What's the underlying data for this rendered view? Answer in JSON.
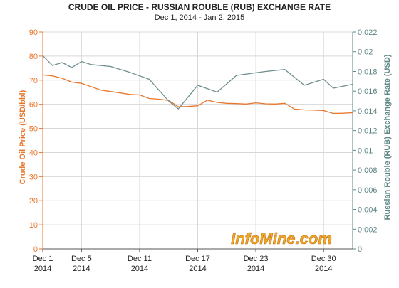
{
  "chart_data": {
    "type": "line",
    "title": "CRUDE OIL PRICE - RUSSIAN ROUBLE (RUB) EXCHANGE RATE",
    "subtitle": "Dec 1, 2014 - Jan 2, 2015",
    "ylabel_left": "Crude Oil Price (USD/bbl)",
    "ylabel_right": "Russian Rouble (RUB) Exchange Rate (USD)",
    "xlim": [
      "2014-12-01",
      "2015-01-02"
    ],
    "ylim_left": [
      0,
      90
    ],
    "ylim_right": [
      0,
      0.022
    ],
    "yticks_left": [
      0,
      10,
      20,
      30,
      40,
      50,
      60,
      70,
      80,
      90
    ],
    "yticks_right": [
      "0",
      "0.002",
      "0.004",
      "0.006",
      "0.008",
      "0.01",
      "0.012",
      "0.014",
      "0.016",
      "0.018",
      "0.02",
      "0.022"
    ],
    "xticks": [
      {
        "date": "2014-12-01",
        "line1": "Dec 1",
        "line2": "2014"
      },
      {
        "date": "2014-12-05",
        "line1": "Dec 5",
        "line2": "2014"
      },
      {
        "date": "2014-12-11",
        "line1": "Dec 11",
        "line2": "2014"
      },
      {
        "date": "2014-12-17",
        "line1": "Dec 17",
        "line2": "2014"
      },
      {
        "date": "2014-12-23",
        "line1": "Dec 23",
        "line2": "2014"
      },
      {
        "date": "2014-12-30",
        "line1": "Dec 30",
        "line2": "2014"
      }
    ],
    "grid": true,
    "series": [
      {
        "axis": "left",
        "color": "#e8772e",
        "points": [
          {
            "x": "2014-12-01",
            "y": 72.2
          },
          {
            "x": "2014-12-02",
            "y": 71.8
          },
          {
            "x": "2014-12-03",
            "y": 70.8
          },
          {
            "x": "2014-12-04",
            "y": 69.2
          },
          {
            "x": "2014-12-05",
            "y": 68.7
          },
          {
            "x": "2014-12-06",
            "y": 67.3
          },
          {
            "x": "2014-12-07",
            "y": 65.9
          },
          {
            "x": "2014-12-08",
            "y": 65.3
          },
          {
            "x": "2014-12-09",
            "y": 64.7
          },
          {
            "x": "2014-12-10",
            "y": 64.1
          },
          {
            "x": "2014-12-11",
            "y": 63.9
          },
          {
            "x": "2014-12-12",
            "y": 62.4
          },
          {
            "x": "2014-12-13",
            "y": 62.1
          },
          {
            "x": "2014-12-14",
            "y": 61.6
          },
          {
            "x": "2014-12-15",
            "y": 59.0
          },
          {
            "x": "2014-12-16",
            "y": 59.1
          },
          {
            "x": "2014-12-17",
            "y": 59.4
          },
          {
            "x": "2014-12-18",
            "y": 61.7
          },
          {
            "x": "2014-12-19",
            "y": 60.8
          },
          {
            "x": "2014-12-20",
            "y": 60.4
          },
          {
            "x": "2014-12-21",
            "y": 60.3
          },
          {
            "x": "2014-12-22",
            "y": 60.1
          },
          {
            "x": "2014-12-23",
            "y": 60.6
          },
          {
            "x": "2014-12-24",
            "y": 60.2
          },
          {
            "x": "2014-12-25",
            "y": 60.1
          },
          {
            "x": "2014-12-26",
            "y": 60.4
          },
          {
            "x": "2014-12-27",
            "y": 58.0
          },
          {
            "x": "2014-12-28",
            "y": 57.7
          },
          {
            "x": "2014-12-29",
            "y": 57.6
          },
          {
            "x": "2014-12-30",
            "y": 57.4
          },
          {
            "x": "2014-12-31",
            "y": 56.2
          },
          {
            "x": "2015-01-01",
            "y": 56.3
          },
          {
            "x": "2015-01-02",
            "y": 56.5
          }
        ]
      },
      {
        "axis": "right",
        "color": "#6e8f8e",
        "points": [
          {
            "x": "2014-12-01",
            "y": 0.0196
          },
          {
            "x": "2014-12-02",
            "y": 0.0186
          },
          {
            "x": "2014-12-03",
            "y": 0.0189
          },
          {
            "x": "2014-12-04",
            "y": 0.0184
          },
          {
            "x": "2014-12-05",
            "y": 0.019
          },
          {
            "x": "2014-12-06",
            "y": 0.0187
          },
          {
            "x": "2014-12-08",
            "y": 0.0185
          },
          {
            "x": "2014-12-10",
            "y": 0.0179
          },
          {
            "x": "2014-12-12",
            "y": 0.0172
          },
          {
            "x": "2014-12-14",
            "y": 0.015
          },
          {
            "x": "2014-12-15",
            "y": 0.0142
          },
          {
            "x": "2014-12-17",
            "y": 0.0166
          },
          {
            "x": "2014-12-19",
            "y": 0.0159
          },
          {
            "x": "2014-12-21",
            "y": 0.0176
          },
          {
            "x": "2014-12-24",
            "y": 0.018
          },
          {
            "x": "2014-12-26",
            "y": 0.0182
          },
          {
            "x": "2014-12-28",
            "y": 0.0166
          },
          {
            "x": "2014-12-30",
            "y": 0.0172
          },
          {
            "x": "2014-12-31",
            "y": 0.0163
          },
          {
            "x": "2015-01-02",
            "y": 0.0167
          }
        ]
      }
    ]
  },
  "watermark": "InfoMine.com"
}
